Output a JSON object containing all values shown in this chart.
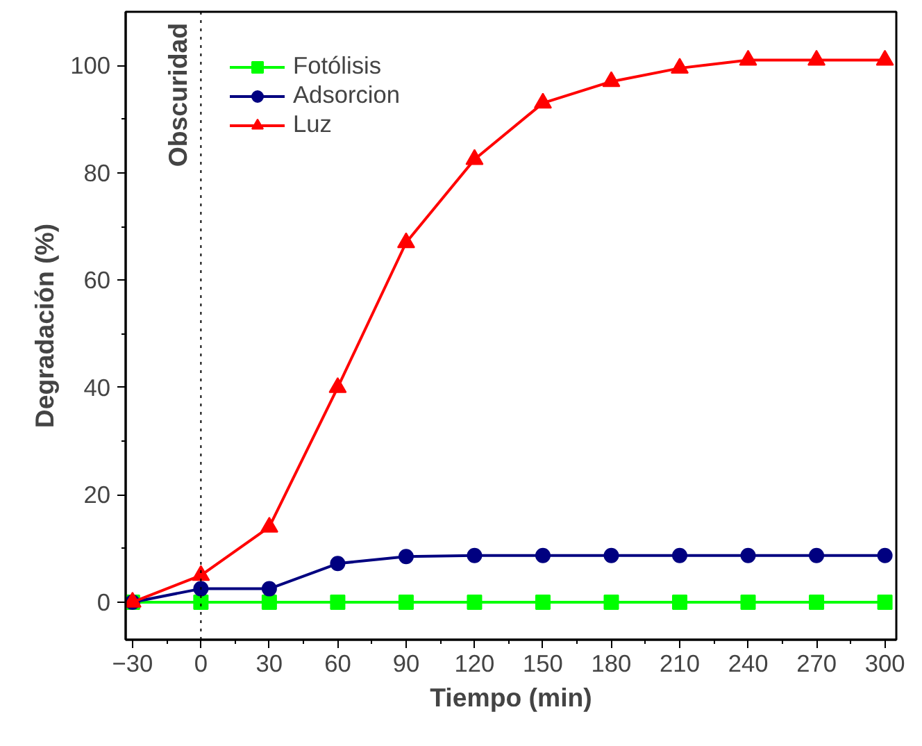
{
  "chart_data": {
    "type": "line",
    "xlabel": "Tiempo (min)",
    "ylabel": "Degradación (%)",
    "x": [
      -30,
      0,
      30,
      60,
      90,
      120,
      150,
      180,
      210,
      240,
      270,
      300
    ],
    "series": [
      {
        "name": "Fotólisis",
        "color": "#00ff00",
        "marker": "square",
        "values": [
          0,
          0,
          0,
          0,
          0,
          0,
          0,
          0,
          0,
          0,
          0,
          0
        ]
      },
      {
        "name": "Adsorcion",
        "color": "#000080",
        "marker": "circle",
        "values": [
          0,
          2.5,
          2.5,
          7.2,
          8.5,
          8.7,
          8.7,
          8.7,
          8.7,
          8.7,
          8.7,
          8.7
        ]
      },
      {
        "name": "Luz",
        "color": "#ff0000",
        "marker": "triangle",
        "values": [
          0,
          5,
          14,
          40,
          67,
          82.5,
          93,
          97,
          99.5,
          101,
          101,
          101
        ]
      }
    ],
    "xlim": [
      -33,
      305
    ],
    "xticks": [
      -30,
      0,
      30,
      60,
      90,
      120,
      150,
      180,
      210,
      240,
      270,
      300
    ],
    "ylim": [
      -7,
      110
    ],
    "yticks": [
      0,
      20,
      40,
      60,
      80,
      100
    ],
    "ref_lines": [
      {
        "axis": "x",
        "value": 0,
        "label": "Obscuridad",
        "color": "#000000",
        "line_style": "dotted"
      }
    ],
    "grid": false,
    "legend": "top left",
    "line_style": "solid"
  }
}
